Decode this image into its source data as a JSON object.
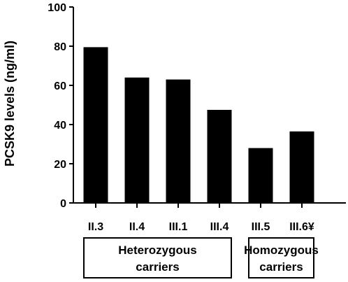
{
  "chart_data": {
    "type": "bar",
    "categories": [
      "II.3",
      "II.4",
      "III.1",
      "III.4",
      "III.5",
      "III.6¥"
    ],
    "values": [
      79.5,
      64,
      63,
      47.5,
      28,
      36.5
    ],
    "ylabel": "PCSK9 levels (ng/ml)",
    "xlabel": "",
    "ylim": [
      0,
      100
    ],
    "yticks": [
      0,
      20,
      40,
      60,
      80,
      100
    ],
    "bar_color": "#000000",
    "groups": [
      {
        "line1": "Heterozygous",
        "line2": "carriers",
        "categories": [
          "II.3",
          "II.4",
          "III.1",
          "III.4"
        ]
      },
      {
        "line1": "Homozygous",
        "line2": "carriers",
        "categories": [
          "III.5",
          "III.6¥"
        ]
      }
    ]
  }
}
